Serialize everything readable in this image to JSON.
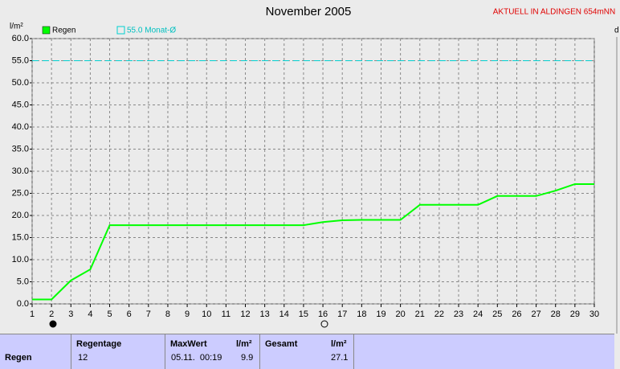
{
  "chart_data": {
    "type": "line",
    "title": "November 2005",
    "subtitle": "AKTUELL IN ALDINGEN 654mNN",
    "y_label": "l/m²",
    "x_label": "d",
    "x": [
      1,
      2,
      3,
      4,
      5,
      6,
      7,
      8,
      9,
      10,
      11,
      12,
      13,
      14,
      15,
      16,
      17,
      18,
      19,
      20,
      21,
      22,
      23,
      24,
      25,
      26,
      27,
      28,
      29,
      30
    ],
    "series": [
      {
        "name": "Regen",
        "color": "#00ff00",
        "values": [
          1.0,
          1.0,
          5.3,
          7.8,
          17.8,
          17.8,
          17.8,
          17.8,
          17.8,
          17.8,
          17.8,
          17.8,
          17.8,
          17.8,
          17.8,
          18.5,
          18.9,
          19.0,
          19.0,
          19.0,
          22.4,
          22.4,
          22.4,
          22.4,
          24.4,
          24.4,
          24.4,
          25.6,
          27.1,
          27.1
        ]
      }
    ],
    "reference": {
      "name": "55.0 Monat-Ø",
      "value": 55,
      "color": "#00d0d0"
    },
    "xlim": [
      1,
      30
    ],
    "ylim": [
      0,
      60
    ],
    "xticks": [
      1,
      2,
      3,
      4,
      5,
      6,
      7,
      8,
      9,
      10,
      11,
      12,
      13,
      14,
      15,
      16,
      17,
      18,
      19,
      20,
      21,
      22,
      23,
      24,
      25,
      26,
      27,
      28,
      29,
      30
    ],
    "yticks": [
      {
        "value": 0,
        "label": "0.0"
      },
      {
        "value": 5,
        "label": "5.0"
      },
      {
        "value": 10,
        "label": "10.0"
      },
      {
        "value": 15,
        "label": "15.0"
      },
      {
        "value": 20,
        "label": "20.0"
      },
      {
        "value": 25,
        "label": "25.0"
      },
      {
        "value": 30,
        "label": "30.0"
      },
      {
        "value": 35,
        "label": "35.0"
      },
      {
        "value": 40,
        "label": "40.0"
      },
      {
        "value": 45,
        "label": "45.0"
      },
      {
        "value": 50,
        "label": "50.0"
      },
      {
        "value": 55,
        "label": "55.0"
      },
      {
        "value": 60,
        "label": "60.0"
      }
    ],
    "grid": true
  },
  "table": {
    "row_label": "Regen",
    "columns": [
      {
        "header": "Regentage",
        "value": "12"
      },
      {
        "header": "MaxWert",
        "unit": "l/m²",
        "date": "05.11.  00:19",
        "value": "9.9"
      },
      {
        "header": "Gesamt",
        "unit": "l/m²",
        "value": "27.1"
      }
    ]
  }
}
